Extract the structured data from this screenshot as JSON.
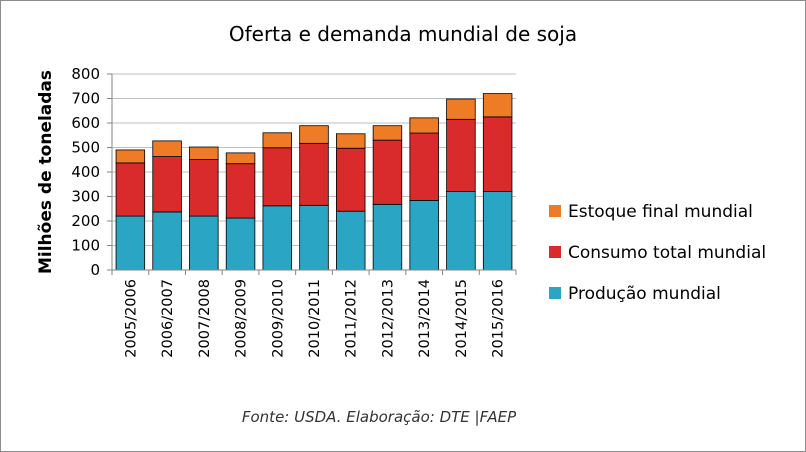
{
  "chart_data": {
    "type": "bar",
    "stacked": true,
    "title": "Oferta e demanda mundial de soja",
    "xlabel": "",
    "ylabel": "Milhões de toneladas",
    "ylim": [
      0,
      800
    ],
    "yticks": [
      0,
      100,
      200,
      300,
      400,
      500,
      600,
      700,
      800
    ],
    "grid": true,
    "legend_position": "right",
    "categories": [
      "2005/2006",
      "2006/2007",
      "2007/2008",
      "2008/2009",
      "2009/2010",
      "2010/2011",
      "2011/2012",
      "2012/2013",
      "2013/2014",
      "2014/2015",
      "2015/2016"
    ],
    "series": [
      {
        "name": "Produção mundial",
        "color": "#2aa6c4",
        "values": [
          220,
          237,
          220,
          212,
          262,
          264,
          240,
          268,
          284,
          320,
          320
        ]
      },
      {
        "name": "Consumo total mundial",
        "color": "#d92b2b",
        "values": [
          217,
          226,
          231,
          222,
          237,
          253,
          257,
          262,
          275,
          295,
          305
        ]
      },
      {
        "name": "Estoque final mundial",
        "color": "#ee7b25",
        "values": [
          53,
          64,
          51,
          44,
          61,
          72,
          59,
          59,
          62,
          83,
          95
        ]
      }
    ],
    "legend_order": [
      "Estoque final mundial",
      "Consumo total mundial",
      "Produção mundial"
    ],
    "source": "Fonte: USDA. Elaboração: DTE |FAEP"
  }
}
